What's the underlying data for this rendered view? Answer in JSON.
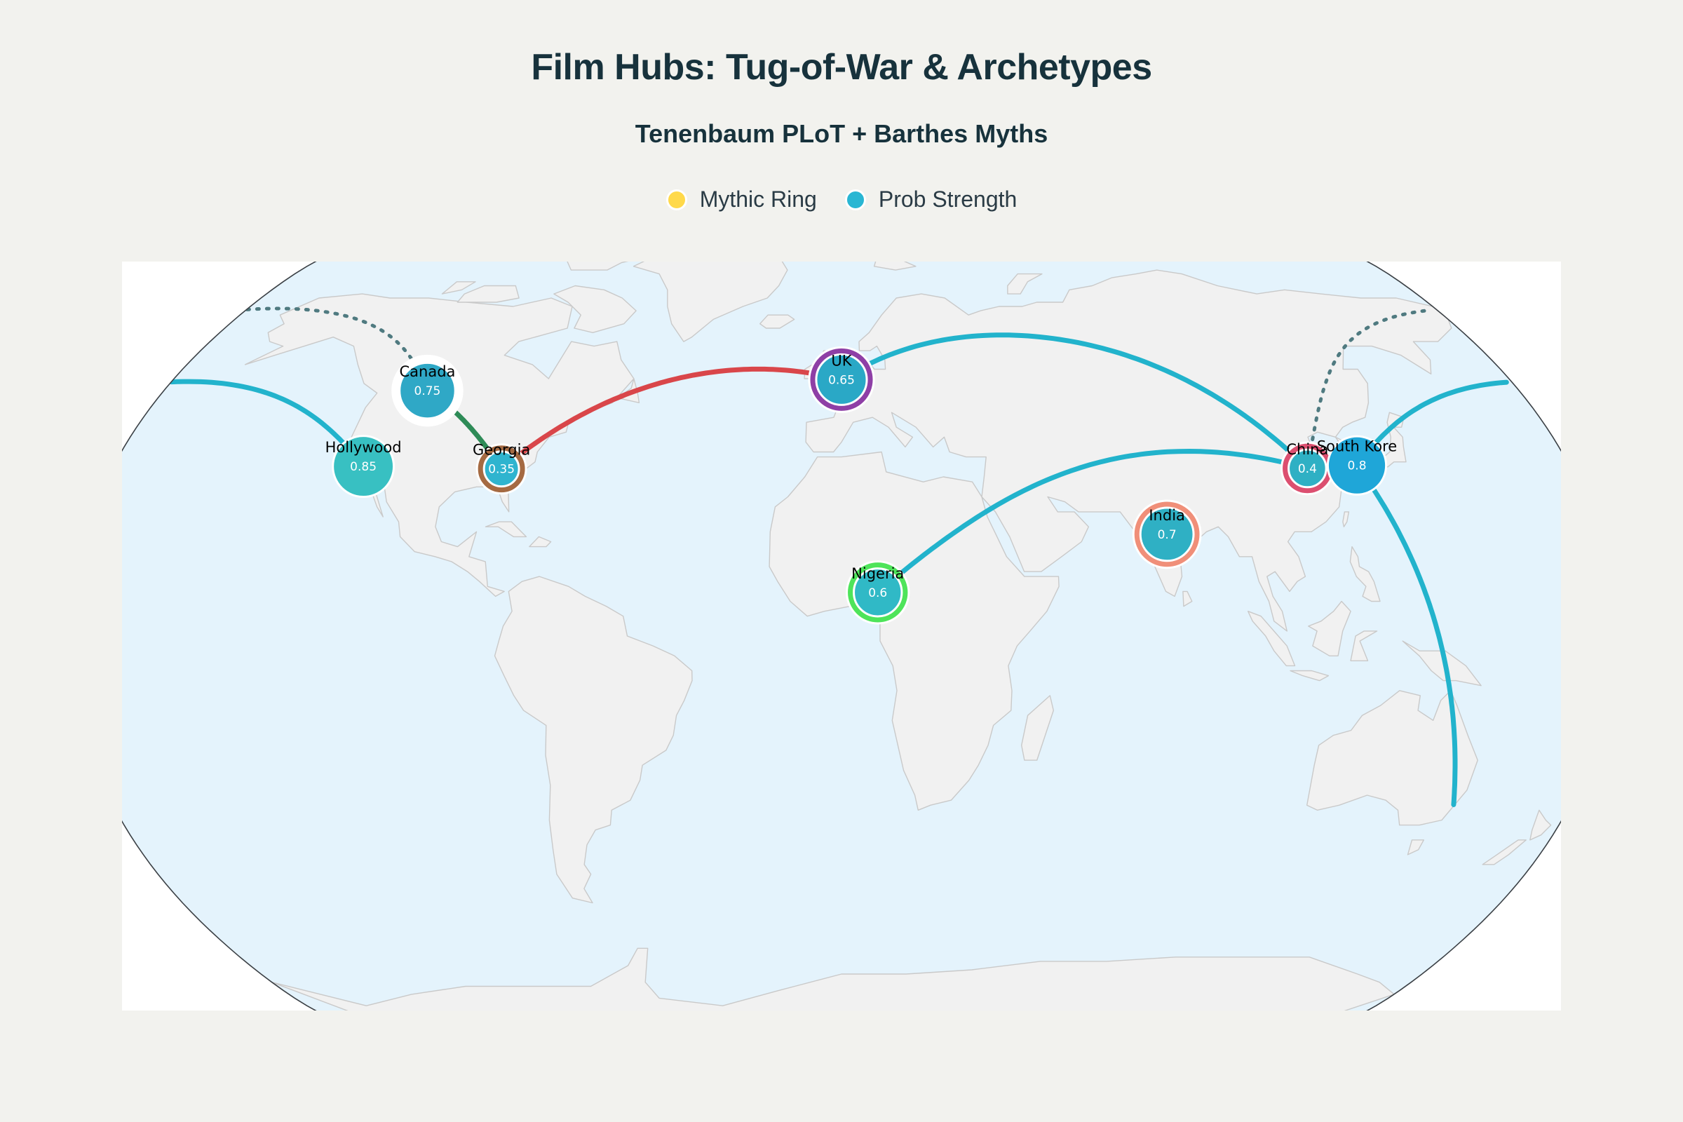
{
  "title": "Film Hubs: Tug-of-War & Archetypes",
  "subtitle": "Tenenbaum PLoT + Barthes Myths",
  "legend": [
    {
      "label": "Mythic Ring",
      "color": "#ffd94a"
    },
    {
      "label": "Prob Strength",
      "color": "#29b6d3"
    }
  ],
  "colors": {
    "ocean": "#e4f3fc",
    "land": "#f1f1f1",
    "land_border": "#c9c9c9",
    "frame": "#3a3f44",
    "flow": "#22b3cc",
    "flow_red": "#d9464a",
    "flow_green": "#2e8b57",
    "dotted": "#4f7a80"
  },
  "hubs": [
    {
      "name": "Hollywood",
      "value": "0.85",
      "lon": -118.2,
      "lat": 34.1,
      "fill": "#38c0c2",
      "ring": null
    },
    {
      "name": "Canada",
      "value": "0.75",
      "lon": -110.0,
      "lat": 49.5,
      "fill": "#2fa8c6",
      "ring": "#ffffff"
    },
    {
      "name": "Georgia",
      "value": "0.35",
      "lon": -83.9,
      "lat": 33.6,
      "fill": "#2fb4cf",
      "ring": "#a56a42"
    },
    {
      "name": "UK",
      "value": "0.65",
      "lon": 0.0,
      "lat": 51.8,
      "fill": "#2aa8c6",
      "ring": "#8e3fa6"
    },
    {
      "name": "Nigeria",
      "value": "0.6",
      "lon": 8.5,
      "lat": 8.8,
      "fill": "#30b9c6",
      "ring": "#4ee45a"
    },
    {
      "name": "India",
      "value": "0.7",
      "lon": 77.5,
      "lat": 20.5,
      "fill": "#2fb0c4",
      "ring": "#f08f79"
    },
    {
      "name": "China",
      "value": "0.4",
      "lon": 115.0,
      "lat": 33.7,
      "fill": "#2fb0c4",
      "ring": "#dc4f70"
    },
    {
      "name": "South Kore",
      "value": "0.8",
      "lon": 127.5,
      "lat": 34.3,
      "fill": "#1fa6d8",
      "ring": null
    }
  ],
  "flows": [
    {
      "from": "Georgia",
      "to": "UK",
      "color": "#d9464a",
      "style": "solid"
    },
    {
      "from": "UK",
      "to": "China",
      "color": "#22b3cc",
      "style": "solid"
    },
    {
      "from": "China",
      "to": "Nigeria",
      "color": "#22b3cc",
      "style": "solid"
    },
    {
      "from": "South Kore",
      "to": "Australia",
      "color": "#22b3cc",
      "style": "solid"
    },
    {
      "from": "South Kore",
      "to": "Hollywood",
      "color": "#22b3cc",
      "style": "solid"
    },
    {
      "from": "China",
      "to": "Canada",
      "color": "#4f7a80",
      "style": "dotted"
    },
    {
      "from": "Canada",
      "to": "Georgia",
      "color": "#2e8b57",
      "style": "solid"
    }
  ]
}
